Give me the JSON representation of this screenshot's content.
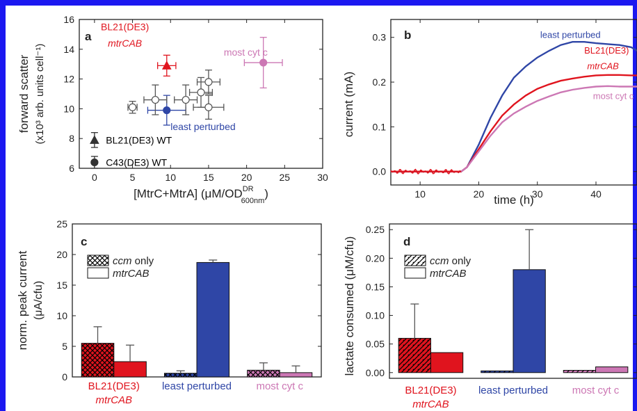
{
  "colors": {
    "red": "#e0141e",
    "blue": "#2f46a6",
    "pink": "#cc77b4",
    "frame": "#1b18f0"
  },
  "chart_data": [
    {
      "panel": "a",
      "type": "scatter",
      "xlabel_main": "[MtrC+MtrA] (μM/OD",
      "xlabel_sup": "DR",
      "xlabel_sub": "600nm",
      "xlabel_end": ")",
      "ylabel_line1": "forward scatter",
      "ylabel_line2": "(x10³ arb. units cell⁻¹)",
      "xlim": [
        -2,
        30
      ],
      "ylim": [
        6,
        16
      ],
      "xticks": [
        0,
        5,
        10,
        15,
        20,
        25,
        30
      ],
      "yticks": [
        6,
        8,
        10,
        12,
        14,
        16
      ],
      "annotations": [
        {
          "text": "BL21(DE3)",
          "x": 4,
          "y": 15.5,
          "color": "red"
        },
        {
          "text": "mtrCAB",
          "x": 4,
          "y": 14.4,
          "color": "red",
          "italic": true
        },
        {
          "text": "most cyt c",
          "x": 17,
          "y": 13.8,
          "color": "pink"
        },
        {
          "text": "least perturbed",
          "x": 10,
          "y": 8.8,
          "color": "blue"
        },
        {
          "text": "BL21(DE3) WT",
          "x": 1.5,
          "y": 7.9,
          "color": "black"
        },
        {
          "text": "C43(DE3) WT",
          "x": 1.5,
          "y": 6.4,
          "color": "black"
        }
      ],
      "points": [
        {
          "label": "BL21(DE3) WT",
          "x": 0,
          "y": 7.9,
          "xerr": 0,
          "yerr": 0.5,
          "marker": "triangle",
          "fill": "#333333"
        },
        {
          "label": "C43(DE3) WT",
          "x": 0,
          "y": 6.4,
          "xerr": 0,
          "yerr": 0.4,
          "marker": "circle",
          "fill": "#333333"
        },
        {
          "label": "BL21(DE3) mtrCAB",
          "x": 9.5,
          "y": 12.9,
          "xerr": 1.2,
          "yerr": 0.7,
          "marker": "triangle",
          "fill": "#e0141e"
        },
        {
          "label": "most cyt c",
          "x": 22.2,
          "y": 13.1,
          "xerr": 2.5,
          "yerr": 1.7,
          "marker": "circle",
          "fill": "#cc77b4"
        },
        {
          "label": "least perturbed",
          "x": 9.5,
          "y": 9.9,
          "xerr": 2.5,
          "yerr": 1.0,
          "marker": "circle",
          "fill": "#2f46a6"
        },
        {
          "label": "",
          "x": 5,
          "y": 10.1,
          "xerr": 0.6,
          "yerr": 0.4,
          "marker": "circle",
          "fill": "#ffffff"
        },
        {
          "label": "",
          "x": 8,
          "y": 10.6,
          "xerr": 1.5,
          "yerr": 1.0,
          "marker": "circle",
          "fill": "#ffffff"
        },
        {
          "label": "",
          "x": 12,
          "y": 10.6,
          "xerr": 1.5,
          "yerr": 1.0,
          "marker": "circle",
          "fill": "#ffffff"
        },
        {
          "label": "",
          "x": 14,
          "y": 11.1,
          "xerr": 1.5,
          "yerr": 1.0,
          "marker": "circle",
          "fill": "#ffffff"
        },
        {
          "label": "",
          "x": 15,
          "y": 11.8,
          "xerr": 1.5,
          "yerr": 0.8,
          "marker": "circle",
          "fill": "#ffffff"
        },
        {
          "label": "",
          "x": 15,
          "y": 10.1,
          "xerr": 2.0,
          "yerr": 0.8,
          "marker": "circle",
          "fill": "#ffffff"
        }
      ]
    },
    {
      "panel": "b",
      "type": "line",
      "xlabel": "time (h)",
      "ylabel": "current (mA)",
      "xlim": [
        5,
        47
      ],
      "ylim": [
        -0.03,
        0.34
      ],
      "xticks": [
        10,
        20,
        30,
        40
      ],
      "yticks": [
        0.0,
        0.1,
        0.2,
        0.3
      ],
      "ytick_labels": [
        "0.0",
        "0.1",
        "0.2",
        "0.3"
      ],
      "series": [
        {
          "name": "least perturbed",
          "color": "blue",
          "x": [
            5,
            17,
            18,
            20,
            22,
            24,
            26,
            28,
            30,
            32,
            34,
            36,
            38,
            40,
            42,
            44,
            46,
            47
          ],
          "y": [
            0,
            0,
            0.01,
            0.06,
            0.12,
            0.17,
            0.21,
            0.235,
            0.255,
            0.27,
            0.283,
            0.29,
            0.29,
            0.287,
            0.285,
            0.283,
            0.278,
            0.27
          ]
        },
        {
          "name": "BL21(DE3) mtrCAB",
          "color": "red",
          "x": [
            5,
            17,
            18,
            20,
            22,
            24,
            26,
            28,
            30,
            32,
            34,
            36,
            38,
            40,
            42,
            44,
            46,
            47
          ],
          "y": [
            0,
            0,
            0.01,
            0.05,
            0.09,
            0.125,
            0.15,
            0.17,
            0.185,
            0.195,
            0.203,
            0.208,
            0.212,
            0.215,
            0.216,
            0.216,
            0.215,
            0.215
          ]
        },
        {
          "name": "most cyt c",
          "color": "pink",
          "x": [
            17,
            18,
            20,
            22,
            24,
            26,
            28,
            30,
            32,
            34,
            36,
            38,
            40,
            42,
            44,
            46,
            47
          ],
          "y": [
            0,
            0.01,
            0.045,
            0.08,
            0.11,
            0.13,
            0.145,
            0.158,
            0.168,
            0.177,
            0.183,
            0.187,
            0.19,
            0.191,
            0.19,
            0.19,
            0.19
          ]
        }
      ],
      "annotations": [
        {
          "text": "least perturbed",
          "x": 30.5,
          "y": 0.305,
          "color": "blue"
        },
        {
          "text": "BL21(DE3)",
          "x": 38,
          "y": 0.27,
          "color": "red"
        },
        {
          "text": "mtrCAB",
          "x": 38.5,
          "y": 0.235,
          "color": "red",
          "italic": true
        },
        {
          "text": "most cyt c",
          "x": 39.5,
          "y": 0.168,
          "color": "pink"
        }
      ]
    },
    {
      "panel": "c",
      "type": "bar",
      "ylabel_line1": "norm. peak current",
      "ylabel_line2": "(μA/cfu)",
      "ylim": [
        0,
        25
      ],
      "yticks": [
        0,
        5,
        10,
        15,
        20,
        25
      ],
      "groups": [
        {
          "label": "BL21(DE3)",
          "label2": "mtrCAB",
          "color": "red"
        },
        {
          "label": "least perturbed",
          "color": "blue"
        },
        {
          "label": "most cyt c",
          "color": "pink"
        }
      ],
      "legend": [
        {
          "text": "ccm",
          "text2": " only",
          "pattern": "crosshatch"
        },
        {
          "text": "mtrCAB",
          "pattern": "solid"
        }
      ],
      "series": [
        {
          "name": "ccm only",
          "values": [
            5.5,
            0.6,
            1.1
          ],
          "errors": [
            2.7,
            0.4,
            1.2
          ]
        },
        {
          "name": "mtrCAB",
          "values": [
            2.5,
            18.7,
            0.7
          ],
          "errors": [
            2.7,
            0.4,
            1.1
          ]
        }
      ]
    },
    {
      "panel": "d",
      "type": "bar",
      "ylabel": "lactate consumed (μM/cfu)",
      "ylim": [
        -0.01,
        0.26
      ],
      "yticks": [
        0.0,
        0.05,
        0.1,
        0.15,
        0.2,
        0.25
      ],
      "ytick_labels": [
        "0.00",
        "0.05",
        "0.10",
        "0.15",
        "0.20",
        "0.25"
      ],
      "groups": [
        {
          "label": "BL21(DE3)",
          "label2": "mtrCAB",
          "color": "red"
        },
        {
          "label": "least perturbed",
          "color": "blue"
        },
        {
          "label": "most cyt c",
          "color": "pink"
        }
      ],
      "legend": [
        {
          "text": "ccm",
          "text2": " only",
          "pattern": "hatch"
        },
        {
          "text": "mtrCAB",
          "pattern": "solid"
        }
      ],
      "series": [
        {
          "name": "ccm only",
          "values": [
            0.06,
            0.003,
            0.004
          ],
          "errors": [
            0.06,
            0,
            0
          ]
        },
        {
          "name": "mtrCAB",
          "values": [
            0.035,
            0.18,
            0.01
          ],
          "errors": [
            0,
            0.07,
            0
          ]
        }
      ]
    }
  ]
}
